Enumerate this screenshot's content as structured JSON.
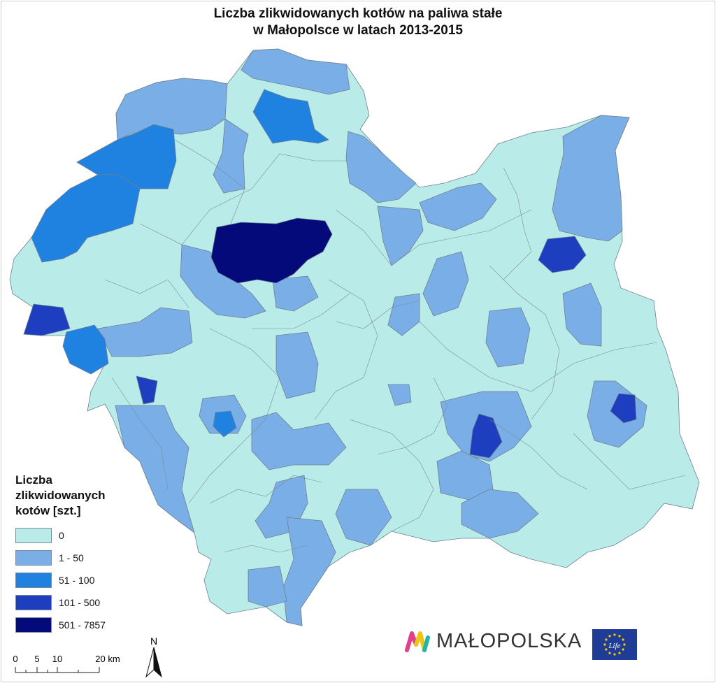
{
  "title": {
    "line1": "Liczba zlikwidowanych kotłów na paliwa stałe",
    "line2": "w Małopolsce w latach 2013-2015"
  },
  "legend": {
    "title_lines": [
      "Liczba",
      "zlikwidowanych",
      "kotów [szt.]"
    ],
    "classes": [
      {
        "label": "0",
        "color": "#b9ece9"
      },
      {
        "label": "1 - 50",
        "color": "#7aaee6"
      },
      {
        "label": "51 - 100",
        "color": "#1f82e0"
      },
      {
        "label": "101 - 500",
        "color": "#1d3fbf"
      },
      {
        "label": "501 - 7857",
        "color": "#050a7a"
      }
    ]
  },
  "scale": {
    "ticks": [
      "0",
      "5",
      "10",
      "20 km"
    ]
  },
  "north_label": "N",
  "logo": {
    "text": "MAŁOPOLSKA",
    "eu_text": "Life",
    "colors": [
      "#e0408a",
      "#f1c40f",
      "#21b5a8"
    ]
  },
  "colors": {
    "border": "#6f7f90",
    "eu_blue": "#1f3c96",
    "eu_star": "#ffcc00"
  }
}
